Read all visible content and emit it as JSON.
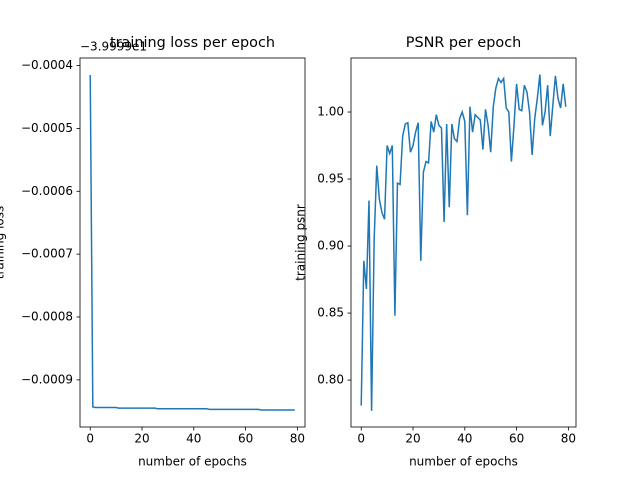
{
  "chart_data": [
    {
      "type": "line",
      "title": "training loss per epoch",
      "offset_text": "−3.9999e1",
      "x_label": "number of epochs",
      "y_label": "training loss",
      "x": [
        0,
        1,
        2,
        3,
        4,
        5,
        6,
        7,
        8,
        9,
        10,
        11,
        12,
        13,
        14,
        15,
        16,
        17,
        18,
        19,
        20,
        21,
        22,
        23,
        24,
        25,
        26,
        27,
        28,
        29,
        30,
        31,
        32,
        33,
        34,
        35,
        36,
        37,
        38,
        39,
        40,
        41,
        42,
        43,
        44,
        45,
        46,
        47,
        48,
        49,
        50,
        51,
        52,
        53,
        54,
        55,
        56,
        57,
        58,
        59,
        60,
        61,
        62,
        63,
        64,
        65,
        66,
        67,
        68,
        69,
        70,
        71,
        72,
        73,
        74,
        75,
        76,
        77,
        78,
        79
      ],
      "series": [
        {
          "color": "#1f77b4",
          "values": [
            -0.000415,
            -0.000943,
            -0.000944,
            -0.000944,
            -0.000944,
            -0.000944,
            -0.000944,
            -0.000944,
            -0.000944,
            -0.000944,
            -0.000944,
            -0.000945,
            -0.000945,
            -0.000945,
            -0.000945,
            -0.000945,
            -0.000945,
            -0.000945,
            -0.000945,
            -0.000945,
            -0.000945,
            -0.000945,
            -0.000945,
            -0.000945,
            -0.000945,
            -0.000945,
            -0.000946,
            -0.000946,
            -0.000946,
            -0.000946,
            -0.000946,
            -0.000946,
            -0.000946,
            -0.000946,
            -0.000946,
            -0.000946,
            -0.000946,
            -0.000946,
            -0.000946,
            -0.000946,
            -0.000946,
            -0.000946,
            -0.000946,
            -0.000946,
            -0.000946,
            -0.000946,
            -0.000947,
            -0.000947,
            -0.000947,
            -0.000947,
            -0.000947,
            -0.000947,
            -0.000947,
            -0.000947,
            -0.000947,
            -0.000947,
            -0.000947,
            -0.000947,
            -0.000947,
            -0.000947,
            -0.000947,
            -0.000947,
            -0.000947,
            -0.000947,
            -0.000947,
            -0.000947,
            -0.000948,
            -0.000948,
            -0.000948,
            -0.000948,
            -0.000948,
            -0.000948,
            -0.000948,
            -0.000948,
            -0.000948,
            -0.000948,
            -0.000948,
            -0.000948,
            -0.000948,
            -0.000948
          ]
        }
      ],
      "xlim": [
        -3.95,
        82.95
      ],
      "xticks": [
        0,
        20,
        40,
        60,
        80
      ],
      "ylim": [
        -0.000975,
        -0.000388
      ],
      "yticks": [
        {
          "value": -0.0004,
          "label": "−0.0004"
        },
        {
          "value": -0.0005,
          "label": "−0.0005"
        },
        {
          "value": -0.0006,
          "label": "−0.0006"
        },
        {
          "value": -0.0007,
          "label": "−0.0007"
        },
        {
          "value": -0.0008,
          "label": "−0.0008"
        },
        {
          "value": -0.0009,
          "label": "−0.0009"
        }
      ]
    },
    {
      "type": "line",
      "title": "PSNR per epoch",
      "x_label": "number of epochs",
      "y_label": "training psnr",
      "x": [
        0,
        1,
        2,
        3,
        4,
        5,
        6,
        7,
        8,
        9,
        10,
        11,
        12,
        13,
        14,
        15,
        16,
        17,
        18,
        19,
        20,
        21,
        22,
        23,
        24,
        25,
        26,
        27,
        28,
        29,
        30,
        31,
        32,
        33,
        34,
        35,
        36,
        37,
        38,
        39,
        40,
        41,
        42,
        43,
        44,
        45,
        46,
        47,
        48,
        49,
        50,
        51,
        52,
        53,
        54,
        55,
        56,
        57,
        58,
        59,
        60,
        61,
        62,
        63,
        64,
        65,
        66,
        67,
        68,
        69,
        70,
        71,
        72,
        73,
        74,
        75,
        76,
        77,
        78,
        79
      ],
      "series": [
        {
          "color": "#1f77b4",
          "values": [
            0.781,
            0.889,
            0.868,
            0.934,
            0.777,
            0.905,
            0.96,
            0.935,
            0.925,
            0.92,
            0.975,
            0.969,
            0.975,
            0.848,
            0.947,
            0.946,
            0.982,
            0.991,
            0.992,
            0.97,
            0.975,
            0.985,
            0.992,
            0.889,
            0.955,
            0.963,
            0.962,
            0.993,
            0.985,
            0.998,
            0.99,
            0.988,
            0.918,
            0.991,
            0.929,
            0.991,
            0.98,
            0.978,
            0.995,
            1.0,
            0.993,
            0.923,
            1.004,
            0.985,
            0.998,
            0.996,
            0.994,
            0.972,
            1.002,
            0.99,
            0.97,
            1.004,
            1.018,
            1.025,
            1.022,
            1.025,
            1.003,
            1.0,
            0.963,
            0.99,
            1.021,
            1.002,
            1.001,
            1.02,
            1.015,
            1.0,
            0.968,
            0.995,
            1.01,
            1.028,
            0.99,
            1.0,
            1.02,
            0.982,
            1.005,
            1.027,
            1.01,
            1.003,
            1.021,
            1.004
          ]
        }
      ],
      "xlim": [
        -3.95,
        82.95
      ],
      "xticks": [
        0,
        20,
        40,
        60,
        80
      ],
      "ylim": [
        0.765,
        1.0403
      ],
      "yticks": [
        {
          "value": 0.8,
          "label": "0.80"
        },
        {
          "value": 0.85,
          "label": "0.85"
        },
        {
          "value": 0.9,
          "label": "0.90"
        },
        {
          "value": 0.95,
          "label": "0.95"
        },
        {
          "value": 1.0,
          "label": "1.00"
        }
      ]
    }
  ]
}
